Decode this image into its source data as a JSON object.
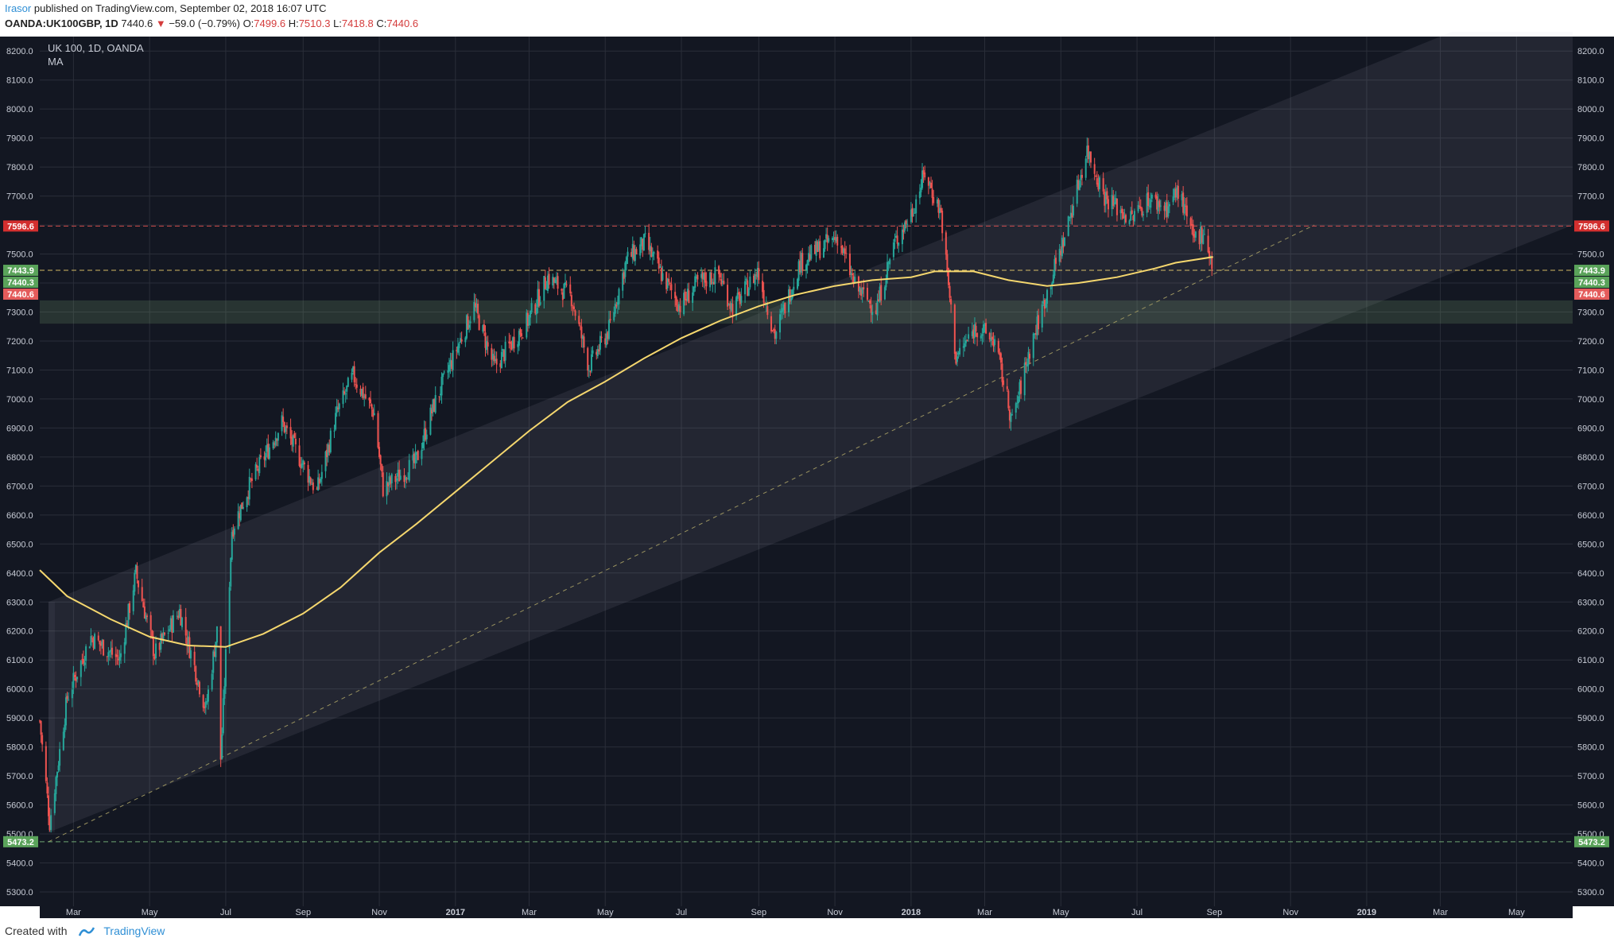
{
  "header": {
    "user": "Irasor",
    "published": "published on TradingView.com, September 02, 2018 16:07 UTC",
    "symbol": "OANDA:UK100GBP, 1D",
    "last": "7440.6",
    "arrow": "▼",
    "change": "−59.0 (−0.79%)",
    "open_label": "O:",
    "open": "7499.6",
    "high_label": "H:",
    "high": "7510.3",
    "low_label": "L:",
    "low": "7418.8",
    "close_label": "C:",
    "close": "7440.6"
  },
  "legend": {
    "title": "UK 100, 1D, OANDA",
    "indicator": "MA"
  },
  "footer": {
    "created_with": "Created with",
    "brand": "TradingView"
  },
  "colors": {
    "bg": "#131722",
    "up": "#26a69a",
    "down": "#ef5350",
    "ma": "#f5d76e",
    "grid": "#2a2e39"
  },
  "chart_data": {
    "type": "line",
    "symbol": "UK 100, 1D, OANDA",
    "ylim": [
      5300,
      8250
    ],
    "y_ticks": [
      "5300.0",
      "5400.0",
      "5500.0",
      "5600.0",
      "5700.0",
      "5800.0",
      "5900.0",
      "6000.0",
      "6100.0",
      "6200.0",
      "6300.0",
      "6400.0",
      "6500.0",
      "6600.0",
      "6700.0",
      "6800.0",
      "6900.0",
      "7000.0",
      "7100.0",
      "7200.0",
      "7300.0",
      "7400.0",
      "7500.0",
      "7600.0",
      "7700.0",
      "7800.0",
      "7900.0",
      "8000.0",
      "8100.0",
      "8200.0"
    ],
    "x_ticks": [
      {
        "label": "Mar",
        "date": "2016-03-01"
      },
      {
        "label": "May",
        "date": "2016-05-01"
      },
      {
        "label": "Jul",
        "date": "2016-07-01"
      },
      {
        "label": "Sep",
        "date": "2016-09-01"
      },
      {
        "label": "Nov",
        "date": "2016-11-01"
      },
      {
        "label": "2017",
        "date": "2017-01-01"
      },
      {
        "label": "Mar",
        "date": "2017-03-01"
      },
      {
        "label": "May",
        "date": "2017-05-01"
      },
      {
        "label": "Jul",
        "date": "2017-07-01"
      },
      {
        "label": "Sep",
        "date": "2017-09-01"
      },
      {
        "label": "Nov",
        "date": "2017-11-01"
      },
      {
        "label": "2018",
        "date": "2018-01-01"
      },
      {
        "label": "Mar",
        "date": "2018-03-01"
      },
      {
        "label": "May",
        "date": "2018-05-01"
      },
      {
        "label": "Jul",
        "date": "2018-07-01"
      },
      {
        "label": "Sep",
        "date": "2018-09-01"
      },
      {
        "label": "Nov",
        "date": "2018-11-01"
      },
      {
        "label": "2019",
        "date": "2019-01-01"
      },
      {
        "label": "Mar",
        "date": "2019-03-01"
      },
      {
        "label": "May",
        "date": "2019-05-01"
      }
    ],
    "x_range": [
      "2016-02-03",
      "2019-06-15"
    ],
    "price_path": [
      [
        "2016-02-03",
        5890
      ],
      [
        "2016-02-11",
        5540
      ],
      [
        "2016-02-25",
        5970
      ],
      [
        "2016-03-15",
        6180
      ],
      [
        "2016-04-07",
        6100
      ],
      [
        "2016-04-20",
        6400
      ],
      [
        "2016-05-05",
        6120
      ],
      [
        "2016-05-25",
        6270
      ],
      [
        "2016-06-15",
        5930
      ],
      [
        "2016-06-24",
        6200
      ],
      [
        "2016-06-27",
        5760
      ],
      [
        "2016-07-06",
        6550
      ],
      [
        "2016-07-20",
        6700
      ],
      [
        "2016-08-15",
        6920
      ],
      [
        "2016-08-31",
        6780
      ],
      [
        "2016-09-12",
        6680
      ],
      [
        "2016-09-28",
        6950
      ],
      [
        "2016-10-11",
        7080
      ],
      [
        "2016-10-28",
        6950
      ],
      [
        "2016-11-04",
        6690
      ],
      [
        "2016-11-30",
        6780
      ],
      [
        "2016-12-14",
        6970
      ],
      [
        "2016-12-30",
        7140
      ],
      [
        "2017-01-16",
        7320
      ],
      [
        "2017-02-01",
        7110
      ],
      [
        "2017-02-28",
        7270
      ],
      [
        "2017-03-16",
        7420
      ],
      [
        "2017-04-04",
        7350
      ],
      [
        "2017-04-18",
        7110
      ],
      [
        "2017-05-04",
        7240
      ],
      [
        "2017-05-18",
        7480
      ],
      [
        "2017-06-02",
        7540
      ],
      [
        "2017-06-15",
        7430
      ],
      [
        "2017-06-30",
        7320
      ],
      [
        "2017-07-14",
        7400
      ],
      [
        "2017-07-31",
        7430
      ],
      [
        "2017-08-11",
        7310
      ],
      [
        "2017-08-31",
        7440
      ],
      [
        "2017-09-14",
        7220
      ],
      [
        "2017-10-04",
        7470
      ],
      [
        "2017-10-20",
        7520
      ],
      [
        "2017-11-03",
        7560
      ],
      [
        "2017-11-17",
        7390
      ],
      [
        "2017-12-04",
        7310
      ],
      [
        "2017-12-18",
        7530
      ],
      [
        "2018-01-02",
        7650
      ],
      [
        "2018-01-12",
        7780
      ],
      [
        "2018-01-25",
        7640
      ],
      [
        "2018-02-06",
        7140
      ],
      [
        "2018-02-22",
        7250
      ],
      [
        "2018-03-09",
        7200
      ],
      [
        "2018-03-23",
        6920
      ],
      [
        "2018-04-06",
        7170
      ],
      [
        "2018-04-20",
        7370
      ],
      [
        "2018-05-04",
        7560
      ],
      [
        "2018-05-22",
        7860
      ],
      [
        "2018-06-05",
        7700
      ],
      [
        "2018-06-26",
        7620
      ],
      [
        "2018-07-10",
        7690
      ],
      [
        "2018-07-25",
        7660
      ],
      [
        "2018-08-03",
        7720
      ],
      [
        "2018-08-15",
        7550
      ],
      [
        "2018-08-24",
        7580
      ],
      [
        "2018-08-31",
        7440
      ]
    ],
    "ma_path": [
      [
        "2016-02-03",
        6410
      ],
      [
        "2016-02-25",
        6320
      ],
      [
        "2016-03-31",
        6240
      ],
      [
        "2016-05-01",
        6180
      ],
      [
        "2016-06-01",
        6150
      ],
      [
        "2016-07-01",
        6145
      ],
      [
        "2016-07-31",
        6190
      ],
      [
        "2016-09-01",
        6260
      ],
      [
        "2016-10-01",
        6350
      ],
      [
        "2016-11-01",
        6470
      ],
      [
        "2016-12-01",
        6570
      ],
      [
        "2017-01-01",
        6680
      ],
      [
        "2017-02-01",
        6790
      ],
      [
        "2017-03-01",
        6890
      ],
      [
        "2017-04-01",
        6990
      ],
      [
        "2017-05-01",
        7060
      ],
      [
        "2017-06-01",
        7140
      ],
      [
        "2017-07-01",
        7210
      ],
      [
        "2017-08-01",
        7270
      ],
      [
        "2017-09-01",
        7320
      ],
      [
        "2017-10-01",
        7360
      ],
      [
        "2017-11-01",
        7390
      ],
      [
        "2017-12-01",
        7410
      ],
      [
        "2018-01-01",
        7420
      ],
      [
        "2018-01-20",
        7440
      ],
      [
        "2018-02-20",
        7440
      ],
      [
        "2018-03-20",
        7410
      ],
      [
        "2018-04-20",
        7390
      ],
      [
        "2018-05-15",
        7400
      ],
      [
        "2018-06-15",
        7420
      ],
      [
        "2018-07-15",
        7450
      ],
      [
        "2018-08-01",
        7470
      ],
      [
        "2018-08-31",
        7490
      ]
    ],
    "horizontal_lines": [
      {
        "price": 7596.6,
        "color": "#ef5350",
        "style": "dashed"
      },
      {
        "price": 7443.9,
        "color": "#f5d76e",
        "style": "dashed"
      },
      {
        "price": 5473.2,
        "color": "#7fbf7f",
        "style": "dashed"
      }
    ],
    "support_zone": [
      7260,
      7340
    ],
    "channel_band": {
      "upper": [
        [
          "2016-02-10",
          6300
        ],
        [
          "2019-03-01",
          8250
        ]
      ],
      "lower": [
        [
          "2016-06-20",
          5730
        ],
        [
          "2019-06-15",
          7600
        ]
      ]
    },
    "trendline": [
      [
        "2016-02-10",
        5473
      ],
      [
        "2018-11-20",
        7600
      ]
    ],
    "price_labels_left": [
      {
        "text": "7596.6",
        "price": 7596.6,
        "color": "#d32f2f"
      },
      {
        "text": "7443.9",
        "price": 7443.9,
        "color": "#5aa35a"
      },
      {
        "text": "7440.3",
        "price": 7440.3,
        "color": "#5aa35a"
      },
      {
        "text": "7440.6",
        "price": 7440.6,
        "color": "#e45b5b"
      },
      {
        "text": "5473.2",
        "price": 5473.2,
        "color": "#5aa35a"
      }
    ],
    "price_labels_right": [
      {
        "text": "7596.6",
        "price": 7596.6,
        "color": "#d32f2f"
      },
      {
        "text": "7443.9",
        "price": 7443.9,
        "color": "#5aa35a"
      },
      {
        "text": "7440.3",
        "price": 7440.3,
        "color": "#5aa35a"
      },
      {
        "text": "7440.6",
        "price": 7440.6,
        "color": "#e45b5b"
      },
      {
        "text": "5473.2",
        "price": 5473.2,
        "color": "#5aa35a"
      }
    ]
  }
}
